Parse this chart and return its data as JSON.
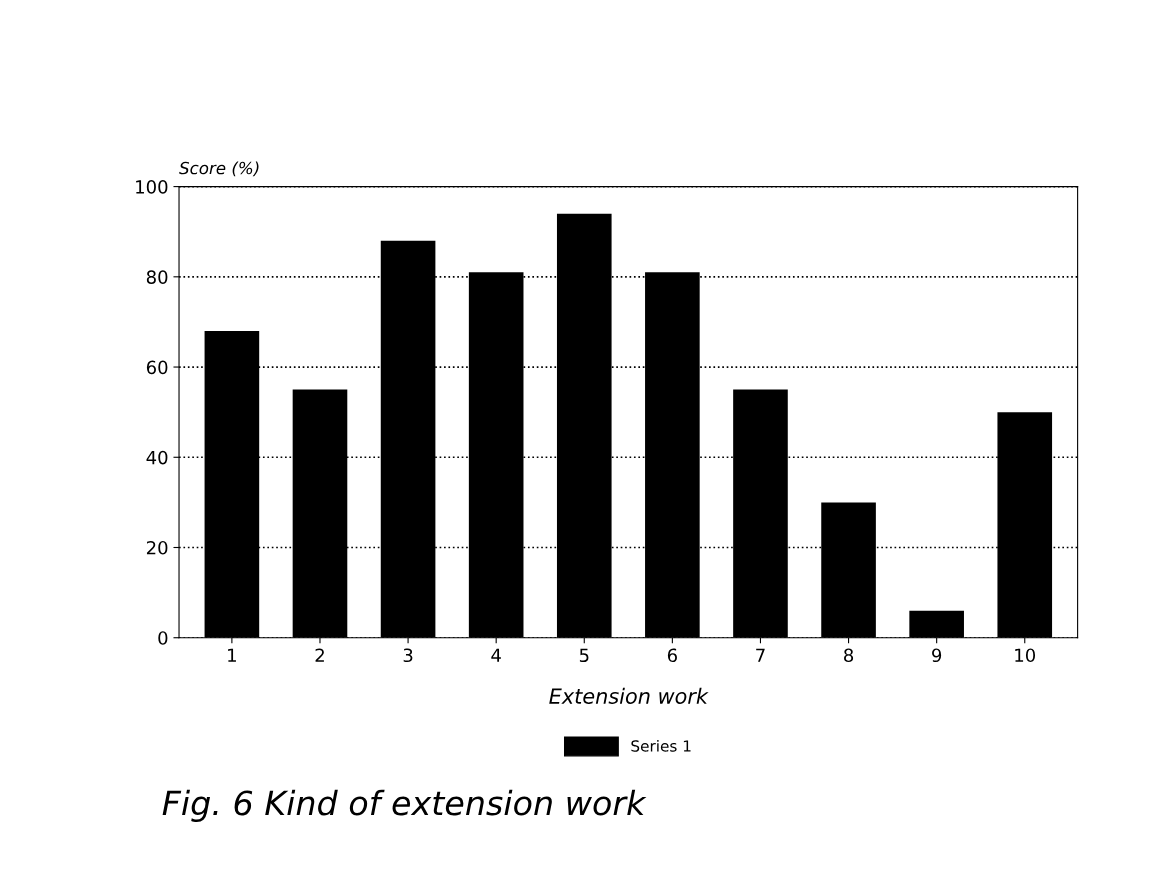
{
  "chart_data": {
    "type": "bar",
    "title": "Fig. 6 Kind of extension work",
    "xlabel": "Extension work",
    "ylabel": "Score (%)",
    "categories": [
      "1",
      "2",
      "3",
      "4",
      "5",
      "6",
      "7",
      "8",
      "9",
      "10"
    ],
    "series": [
      {
        "name": "Series 1",
        "color": "#000000",
        "values": [
          68,
          55,
          88,
          81,
          94,
          81,
          55,
          30,
          6,
          50
        ]
      }
    ],
    "ylim": [
      0,
      100
    ],
    "yticks": [
      0,
      20,
      40,
      60,
      80,
      100
    ],
    "grid": "y",
    "legend": "bottom"
  }
}
